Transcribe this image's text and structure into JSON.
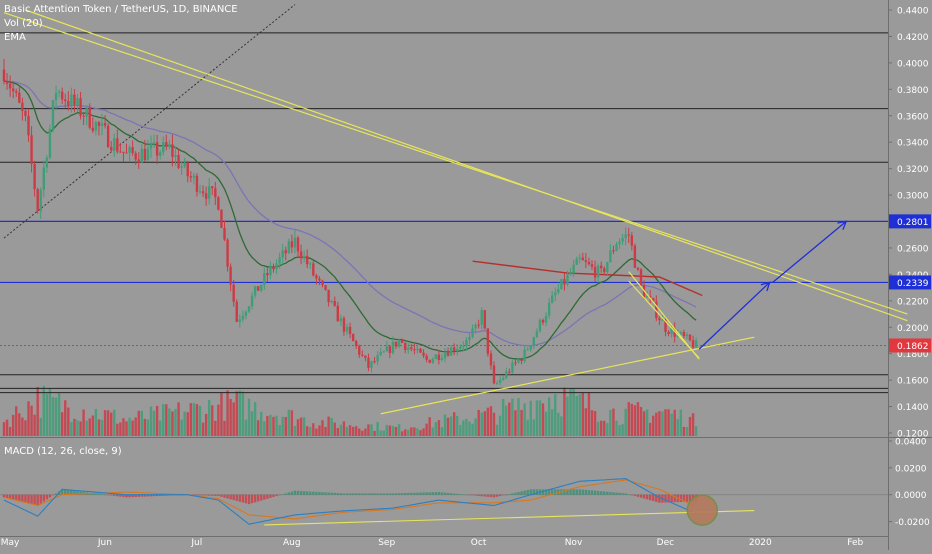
{
  "header": {
    "symbol_line": "Basic Attention Token / TetherUS, 1D, BINANCE",
    "vol_label": "Vol (20)",
    "ema_label": "EMA",
    "macd_label": "MACD (12, 26, close, 9)"
  },
  "colors": {
    "background": "#9a9a9a",
    "up": "#3f9e78",
    "down": "#cc3b45",
    "trendline": "#e7e55a",
    "level_blue": "#1f2fd6",
    "level_black": "#222222",
    "price_line": "#e0383e",
    "ema_fast": "#2f6a33",
    "ema_slow": "#7c74b4",
    "ema_long": "#b5302c"
  },
  "chart_data": [
    {
      "type": "candlestick",
      "title": "Basic Attention Token / TetherUS, 1D, BINANCE",
      "x_ticks": [
        "May",
        "Jun",
        "Jul",
        "Aug",
        "Sep",
        "Oct",
        "Nov",
        "Dec",
        "2020",
        "Feb"
      ],
      "y_ticks": [
        "0.4400",
        "0.4200",
        "0.4000",
        "0.3800",
        "0.3600",
        "0.3400",
        "0.3200",
        "0.3000",
        "0.2800",
        "0.2600",
        "0.2400",
        "0.2200",
        "0.2000",
        "0.1800",
        "0.1600",
        "0.1400",
        "0.1200"
      ],
      "ylim": [
        0.12,
        0.44
      ],
      "price_labels": [
        {
          "value": 0.2801,
          "text": "0.2801",
          "color": "#1f2fd6"
        },
        {
          "value": 0.2339,
          "text": "0.2339",
          "color": "#1f2fd6"
        },
        {
          "value": 0.1862,
          "text": "0.1862",
          "color": "#e0383e"
        }
      ],
      "horizontal_levels": [
        0.4227,
        0.3654,
        0.3248,
        0.1641,
        0.1538,
        0.1505
      ],
      "period": "2019-05-01 to 2019-12-13, daily",
      "close_keypoints": [
        {
          "date": "2019-05-01",
          "close": 0.395
        },
        {
          "date": "2019-05-08",
          "close": 0.355
        },
        {
          "date": "2019-05-12",
          "close": 0.29
        },
        {
          "date": "2019-05-18",
          "close": 0.38
        },
        {
          "date": "2019-05-28",
          "close": 0.36
        },
        {
          "date": "2019-06-10",
          "close": 0.33
        },
        {
          "date": "2019-06-24",
          "close": 0.335
        },
        {
          "date": "2019-06-30",
          "close": 0.315
        },
        {
          "date": "2019-07-10",
          "close": 0.295
        },
        {
          "date": "2019-07-16",
          "close": 0.205
        },
        {
          "date": "2019-07-26",
          "close": 0.24
        },
        {
          "date": "2019-08-04",
          "close": 0.265
        },
        {
          "date": "2019-08-10",
          "close": 0.24
        },
        {
          "date": "2019-08-20",
          "close": 0.2
        },
        {
          "date": "2019-08-28",
          "close": 0.17
        },
        {
          "date": "2019-09-07",
          "close": 0.19
        },
        {
          "date": "2019-09-16",
          "close": 0.175
        },
        {
          "date": "2019-09-30",
          "close": 0.19
        },
        {
          "date": "2019-10-04",
          "close": 0.21
        },
        {
          "date": "2019-10-08",
          "close": 0.155
        },
        {
          "date": "2019-10-18",
          "close": 0.18
        },
        {
          "date": "2019-10-28",
          "close": 0.225
        },
        {
          "date": "2019-11-05",
          "close": 0.25
        },
        {
          "date": "2019-11-12",
          "close": 0.24
        },
        {
          "date": "2019-11-17",
          "close": 0.265
        },
        {
          "date": "2019-11-21",
          "close": 0.27
        },
        {
          "date": "2019-11-25",
          "close": 0.23
        },
        {
          "date": "2019-12-03",
          "close": 0.2
        },
        {
          "date": "2019-12-13",
          "close": 0.186
        }
      ],
      "volume_keypoints": [
        {
          "date": "2019-05-01",
          "volume": 0.35
        },
        {
          "date": "2019-05-12",
          "volume": 0.9
        },
        {
          "date": "2019-06-10",
          "volume": 0.4
        },
        {
          "date": "2019-07-16",
          "volume": 0.8
        },
        {
          "date": "2019-08-10",
          "volume": 0.35
        },
        {
          "date": "2019-09-07",
          "volume": 0.2
        },
        {
          "date": "2019-10-08",
          "volume": 0.55
        },
        {
          "date": "2019-10-28",
          "volume": 1.0
        },
        {
          "date": "2019-11-17",
          "volume": 0.55
        },
        {
          "date": "2019-12-03",
          "volume": 0.6
        },
        {
          "date": "2019-12-13",
          "volume": 0.35
        }
      ],
      "series": [
        {
          "name": "Vol (20)",
          "type": "volume"
        },
        {
          "name": "EMA",
          "type": "line"
        }
      ],
      "ema_long_keypoints": [
        {
          "date": "2019-10-01",
          "value": 0.25
        },
        {
          "date": "2019-11-01",
          "value": 0.241
        },
        {
          "date": "2019-12-01",
          "value": 0.238
        },
        {
          "date": "2019-12-15",
          "value": 0.224
        }
      ],
      "drawings": {
        "trendlines": [
          {
            "from": {
              "date": "2019-05-08",
              "value": 0.44
            },
            "to": {
              "date": "2020-02-20",
              "value": 0.205
            }
          },
          {
            "from": {
              "date": "2019-05-01",
              "value": 0.438
            },
            "to": {
              "date": "2020-02-20",
              "value": 0.21
            }
          },
          {
            "from": {
              "date": "2019-09-01",
              "value": 0.1345
            },
            "to": {
              "date": "2020-01-01",
              "value": 0.1925
            }
          },
          {
            "from": {
              "date": "2019-11-21",
              "value": 0.2421
            },
            "to": {
              "date": "2019-12-14",
              "value": 0.1758
            }
          },
          {
            "from": {
              "date": "2019-11-21",
              "value": 0.235
            },
            "to": {
              "date": "2019-12-14",
              "value": 0.1766
            }
          }
        ],
        "projection_arrow": [
          {
            "date": "2019-12-14",
            "value": 0.1835
          },
          {
            "date": "2020-01-06",
            "value": 0.2339
          },
          {
            "date": "2020-01-07",
            "value": 0.2339
          },
          {
            "date": "2020-01-31",
            "value": 0.2801
          }
        ],
        "dotted_line": {
          "from": {
            "date": "2019-05-01",
            "value": 0.2675
          },
          "to": {
            "date": "2019-08-04",
            "value": 0.4441
          }
        }
      }
    },
    {
      "type": "line",
      "title": "MACD (12, 26, close, 9)",
      "y_ticks": [
        "0.0400",
        "0.0200",
        "0.0000",
        "-0.0200"
      ],
      "ylim": [
        -0.03,
        0.04
      ],
      "macd_keypoints": [
        {
          "date": "2019-05-01",
          "macd": -0.004,
          "signal": -0.002
        },
        {
          "date": "2019-05-12",
          "macd": -0.016,
          "signal": -0.008
        },
        {
          "date": "2019-05-20",
          "macd": 0.004,
          "signal": 0.0
        },
        {
          "date": "2019-06-10",
          "macd": 0.0,
          "signal": 0.002
        },
        {
          "date": "2019-06-30",
          "macd": 0.0,
          "signal": 0.0
        },
        {
          "date": "2019-07-10",
          "macd": -0.004,
          "signal": -0.003
        },
        {
          "date": "2019-07-20",
          "macd": -0.022,
          "signal": -0.015
        },
        {
          "date": "2019-08-04",
          "macd": -0.015,
          "signal": -0.018
        },
        {
          "date": "2019-08-20",
          "macd": -0.012,
          "signal": -0.013
        },
        {
          "date": "2019-09-05",
          "macd": -0.01,
          "signal": -0.011
        },
        {
          "date": "2019-09-20",
          "macd": -0.004,
          "signal": -0.006
        },
        {
          "date": "2019-10-08",
          "macd": -0.008,
          "signal": -0.006
        },
        {
          "date": "2019-10-20",
          "macd": 0.0,
          "signal": -0.004
        },
        {
          "date": "2019-11-05",
          "macd": 0.01,
          "signal": 0.006
        },
        {
          "date": "2019-11-20",
          "macd": 0.012,
          "signal": 0.011
        },
        {
          "date": "2019-12-01",
          "macd": -0.002,
          "signal": 0.004
        },
        {
          "date": "2019-12-13",
          "macd": -0.014,
          "signal": -0.009
        }
      ],
      "drawings": {
        "trendline": {
          "from": {
            "date": "2019-07-25",
            "value": -0.0225
          },
          "to": {
            "date": "2020-01-01",
            "value": -0.0118
          }
        },
        "highlight_circle": {
          "date": "2019-12-15",
          "value": -0.0115
        }
      }
    }
  ]
}
